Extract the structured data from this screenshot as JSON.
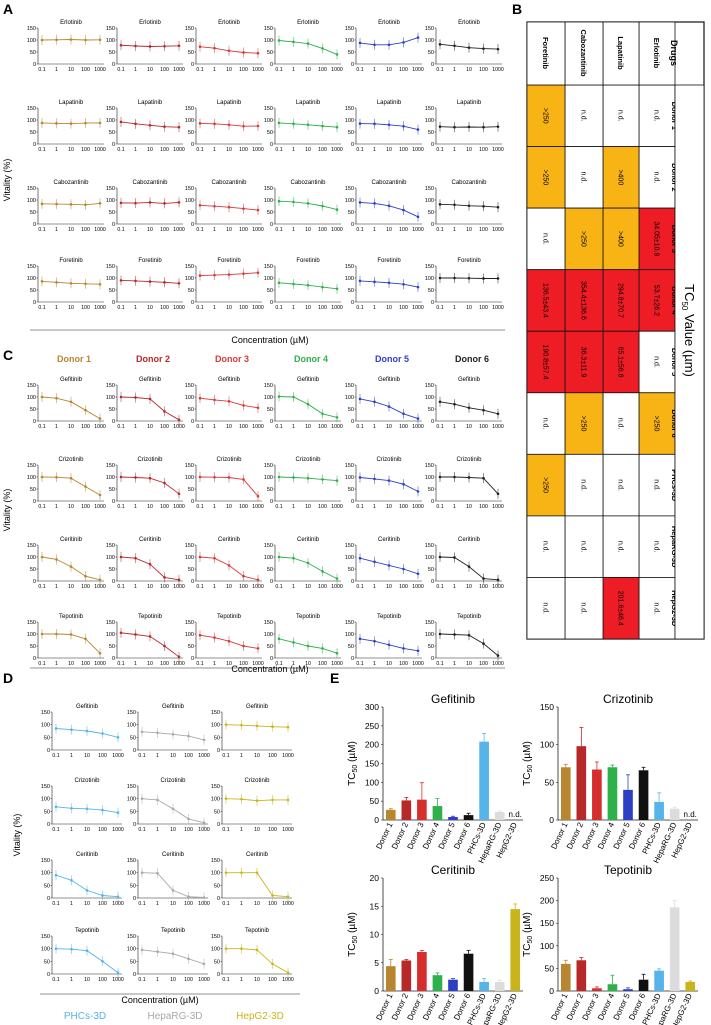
{
  "panels": {
    "A": "A",
    "B": "B",
    "C": "C",
    "D": "D",
    "E": "E"
  },
  "colors": {
    "donor1": "#b8862f",
    "donor2": "#b7282a",
    "donor3": "#d63a3a",
    "donor4": "#2eb04b",
    "donor5": "#2f3fc4",
    "donor6": "#222222",
    "phcs": "#56b4e9",
    "heparg": "#a9a9a9",
    "hepg2": "#c9b51b",
    "cell_red": "#ee1c24",
    "cell_orange": "#f8b415"
  },
  "axes": {
    "vitality": "Vitality (%)",
    "concentration": "Concentration (µM)",
    "tc50": "TC",
    "tc50_sub": "50",
    "tc50_unit": " (µM)",
    "x_ticks": [
      "0.1",
      "1",
      "10",
      "100",
      "1000"
    ]
  },
  "panelA": {
    "rows": [
      "Erlotinib",
      "Lapatinib",
      "Cabozantinib",
      "Foretinib"
    ],
    "curve_ymax": 150,
    "curve_yticks": [
      0,
      50,
      100,
      150
    ],
    "points": [
      [
        [
          100,
          101,
          102,
          100,
          101
        ],
        [
          78,
          75,
          73,
          74,
          76
        ],
        [
          72,
          66,
          55,
          48,
          45
        ],
        [
          98,
          92,
          85,
          65,
          40
        ],
        [
          88,
          80,
          80,
          90,
          110
        ],
        [
          82,
          76,
          68,
          64,
          62
        ]
      ],
      [
        [
          88,
          86,
          85,
          87,
          88
        ],
        [
          92,
          84,
          78,
          72,
          70
        ],
        [
          86,
          84,
          80,
          74,
          75
        ],
        [
          88,
          84,
          80,
          75,
          70
        ],
        [
          85,
          84,
          80,
          74,
          60
        ],
        [
          72,
          70,
          71,
          70,
          72
        ]
      ],
      [
        [
          84,
          83,
          82,
          80,
          86
        ],
        [
          88,
          87,
          90,
          86,
          90
        ],
        [
          78,
          74,
          70,
          64,
          58
        ],
        [
          95,
          92,
          86,
          75,
          60
        ],
        [
          90,
          86,
          76,
          58,
          30
        ],
        [
          82,
          80,
          76,
          74,
          70
        ]
      ],
      [
        [
          86,
          82,
          78,
          76,
          74
        ],
        [
          90,
          88,
          85,
          82,
          78
        ],
        [
          110,
          112,
          114,
          118,
          122
        ],
        [
          80,
          75,
          70,
          62,
          55
        ],
        [
          88,
          84,
          80,
          74,
          62
        ],
        [
          100,
          100,
          99,
          98,
          98
        ]
      ]
    ]
  },
  "panelB": {
    "header": "Drugs",
    "title": "TC",
    "title_sub": "50",
    "title_tail": " Value (µm)",
    "drugs": [
      "Erlotinib",
      "Lapatinib",
      "Cabozantinib",
      "Foretinib"
    ],
    "rows": [
      {
        "label": "Donor 1",
        "cells": [
          [
            "n.d.",
            ""
          ],
          [
            "n.d.",
            ""
          ],
          [
            "n.d.",
            ""
          ],
          [
            ">250",
            "o"
          ]
        ]
      },
      {
        "label": "Donor 2",
        "cells": [
          [
            "n.d.",
            ""
          ],
          [
            ">400",
            "o"
          ],
          [
            "n.d.",
            ""
          ],
          [
            ">250",
            "o"
          ]
        ]
      },
      {
        "label": "Donor 3",
        "cells": [
          [
            "34.05±10.9",
            "r"
          ],
          [
            ">400",
            "o"
          ],
          [
            ">250",
            "o"
          ],
          [
            "n.d.",
            ""
          ]
        ]
      },
      {
        "label": "Donor 4",
        "cells": [
          [
            "53.7±26.2",
            "r"
          ],
          [
            "294.8±70.7",
            "r"
          ],
          [
            "354.4±136.6",
            "r"
          ],
          [
            "136.5±43.4",
            "r"
          ]
        ]
      },
      {
        "label": "Donor 5",
        "cells": [
          [
            "n.d.",
            ""
          ],
          [
            "65.1±56.6",
            "r"
          ],
          [
            "36.3±11.9",
            "r"
          ],
          [
            "190.8±57.4",
            "r"
          ]
        ]
      },
      {
        "label": "Donor 6",
        "cells": [
          [
            ">250",
            "o"
          ],
          [
            "n.d.",
            ""
          ],
          [
            ">250",
            "o"
          ],
          [
            "n.d.",
            ""
          ]
        ]
      },
      {
        "label": "PHCs-3D",
        "cells": [
          [
            "n.d.",
            ""
          ],
          [
            "n.d.",
            ""
          ],
          [
            "n.d.",
            ""
          ],
          [
            ">250",
            "o"
          ]
        ]
      },
      {
        "label": "HepaRG-3D",
        "cells": [
          [
            "n.d.",
            ""
          ],
          [
            "n.d.",
            ""
          ],
          [
            "n.d.",
            ""
          ],
          [
            "n.d.",
            ""
          ]
        ]
      },
      {
        "label": "HepG2-3D",
        "cells": [
          [
            "n.d.",
            ""
          ],
          [
            "201.6±46.4",
            "r"
          ],
          [
            "n.d.",
            ""
          ],
          [
            "n.d.",
            ""
          ]
        ]
      }
    ]
  },
  "panelC": {
    "donors": [
      "Donor 1",
      "Donor 2",
      "Donor 3",
      "Donor 4",
      "Donor 5",
      "Donor 6"
    ],
    "rows": [
      "Gefitinib",
      "Crizotinib",
      "Ceritinib",
      "Tepotinib"
    ],
    "curve_ymax": 150,
    "points": [
      [
        [
          100,
          95,
          80,
          45,
          10
        ],
        [
          100,
          98,
          92,
          40,
          5
        ],
        [
          95,
          88,
          82,
          65,
          55
        ],
        [
          102,
          100,
          70,
          30,
          15
        ],
        [
          92,
          80,
          60,
          30,
          10
        ],
        [
          80,
          70,
          55,
          45,
          30
        ]
      ],
      [
        [
          100,
          99,
          95,
          60,
          25
        ],
        [
          100,
          98,
          95,
          75,
          30
        ],
        [
          100,
          99,
          98,
          90,
          20
        ],
        [
          100,
          98,
          95,
          90,
          85
        ],
        [
          98,
          92,
          85,
          70,
          40
        ],
        [
          100,
          100,
          98,
          95,
          30
        ]
      ],
      [
        [
          100,
          90,
          60,
          20,
          5
        ],
        [
          100,
          95,
          70,
          15,
          5
        ],
        [
          100,
          95,
          65,
          20,
          5
        ],
        [
          100,
          95,
          75,
          40,
          10
        ],
        [
          95,
          80,
          65,
          50,
          30
        ],
        [
          100,
          98,
          60,
          10,
          5
        ]
      ],
      [
        [
          100,
          100,
          98,
          80,
          20
        ],
        [
          105,
          98,
          90,
          50,
          5
        ],
        [
          95,
          85,
          70,
          50,
          40
        ],
        [
          80,
          65,
          50,
          40,
          20
        ],
        [
          80,
          70,
          55,
          40,
          30
        ],
        [
          100,
          98,
          95,
          60,
          10
        ]
      ]
    ]
  },
  "panelD": {
    "models": [
      "PHCs-3D",
      "HepaRG-3D",
      "HepG2-3D"
    ],
    "rows": [
      "Gefitinib",
      "Crizotinib",
      "Ceritinib",
      "Tepotinib"
    ],
    "curve_ymax": 150,
    "curve_yticks": [
      0,
      50,
      100,
      150
    ],
    "points": [
      [
        [
          85,
          80,
          75,
          65,
          50
        ],
        [
          72,
          68,
          62,
          55,
          40
        ],
        [
          100,
          98,
          95,
          92,
          90
        ]
      ],
      [
        [
          68,
          62,
          60,
          55,
          45
        ],
        [
          100,
          95,
          60,
          20,
          5
        ],
        [
          100,
          98,
          92,
          95,
          95
        ]
      ],
      [
        [
          90,
          70,
          30,
          10,
          5
        ],
        [
          100,
          98,
          30,
          5,
          2
        ],
        [
          100,
          100,
          100,
          10,
          5
        ]
      ],
      [
        [
          100,
          98,
          92,
          50,
          5
        ],
        [
          95,
          88,
          80,
          60,
          40
        ],
        [
          100,
          100,
          95,
          40,
          5
        ]
      ]
    ]
  },
  "panelE": {
    "categories": [
      "Donor 1",
      "Donor 2",
      "Donor 3",
      "Donor 4",
      "Donor 5",
      "Donor 6",
      "PHCs-3D",
      "HepaRG-3D",
      "HepG2-3D"
    ],
    "nd": "n.d.",
    "charts": [
      {
        "title": "Gefitinib",
        "ylim": [
          0,
          300
        ],
        "yticks": [
          0,
          50,
          100,
          150,
          200,
          250,
          300
        ],
        "values": [
          27,
          52,
          54,
          37,
          8,
          13,
          208,
          21,
          null
        ],
        "errors": [
          3,
          8,
          45,
          20,
          2,
          5,
          22,
          3,
          0
        ]
      },
      {
        "title": "Crizotinib",
        "ylim": [
          0,
          150
        ],
        "yticks": [
          0,
          50,
          100,
          150
        ],
        "values": [
          70,
          98,
          67,
          70,
          40,
          66,
          24,
          15,
          null
        ],
        "errors": [
          4,
          25,
          10,
          3,
          20,
          4,
          12,
          2,
          0
        ]
      },
      {
        "title": "Ceritinib",
        "ylim": [
          0,
          20
        ],
        "yticks": [
          0,
          5,
          10,
          15,
          20
        ],
        "values": [
          4.4,
          5.4,
          6.9,
          2.8,
          2.0,
          6.6,
          1.6,
          1.6,
          14.5
        ],
        "errors": [
          1.2,
          0.2,
          0.3,
          0.4,
          0.2,
          0.6,
          0.6,
          0.3,
          0.9
        ]
      },
      {
        "title": "Tepotinib",
        "ylim": [
          0,
          250
        ],
        "yticks": [
          0,
          50,
          100,
          150,
          200,
          250
        ],
        "values": [
          60,
          68,
          6,
          15,
          4,
          25,
          45,
          185,
          20
        ],
        "errors": [
          8,
          6,
          3,
          20,
          3,
          12,
          4,
          15,
          2
        ]
      }
    ]
  }
}
